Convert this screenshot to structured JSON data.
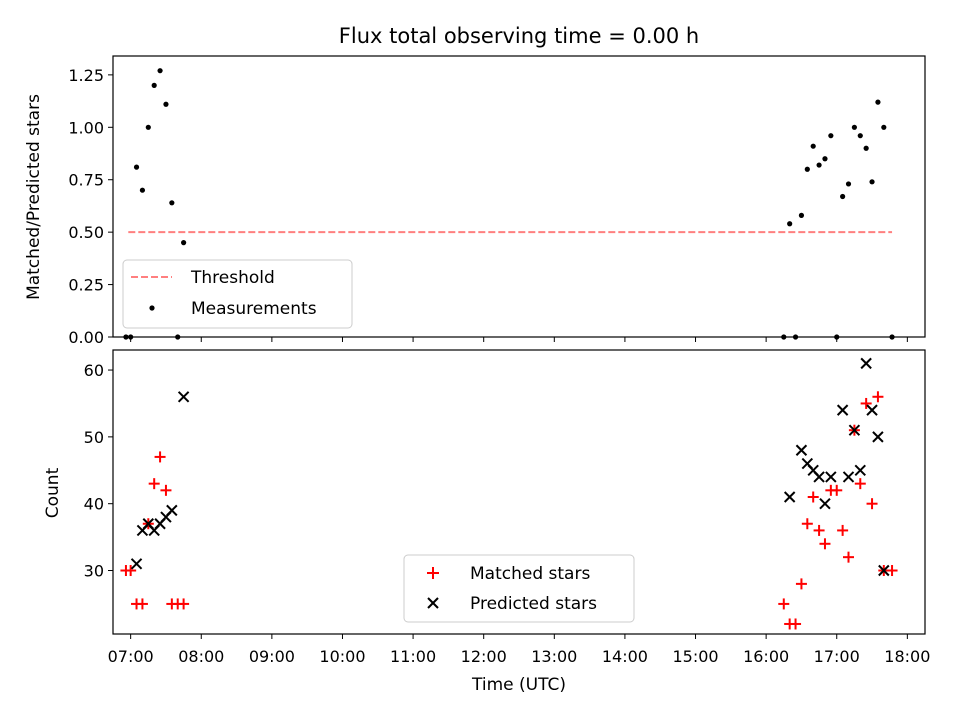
{
  "chart_data": [
    {
      "type": "scatter",
      "title": "Flux total observing time = 0.00 h",
      "ylabel": "Matched/Predicted stars",
      "xlabel": "",
      "xlim": [
        "06:45",
        "18:15"
      ],
      "ylim": [
        0.0,
        1.34
      ],
      "yticks": [
        "0.00",
        "0.25",
        "0.50",
        "0.75",
        "1.00",
        "1.25"
      ],
      "grid": false,
      "legend_position": "lower-left",
      "threshold": {
        "name": "Threshold",
        "color": "#ff7f7f",
        "style": "dashed",
        "y": 0.5,
        "x_range": [
          "06:58",
          "17:47"
        ]
      },
      "series": [
        {
          "name": "Measurements",
          "color": "#000000",
          "marker": "dot",
          "points": [
            [
              "06:56",
              0.0
            ],
            [
              "07:00",
              0.0
            ],
            [
              "07:05",
              0.81
            ],
            [
              "07:10",
              0.7
            ],
            [
              "07:15",
              1.0
            ],
            [
              "07:20",
              1.2
            ],
            [
              "07:25",
              1.27
            ],
            [
              "07:30",
              1.11
            ],
            [
              "07:35",
              0.64
            ],
            [
              "07:40",
              0.0
            ],
            [
              "07:45",
              0.45
            ],
            [
              "16:15",
              0.0
            ],
            [
              "16:20",
              0.54
            ],
            [
              "16:25",
              0.0
            ],
            [
              "16:30",
              0.58
            ],
            [
              "16:35",
              0.8
            ],
            [
              "16:40",
              0.91
            ],
            [
              "16:45",
              0.82
            ],
            [
              "16:50",
              0.85
            ],
            [
              "16:55",
              0.96
            ],
            [
              "17:00",
              0.0
            ],
            [
              "17:05",
              0.67
            ],
            [
              "17:10",
              0.73
            ],
            [
              "17:15",
              1.0
            ],
            [
              "17:20",
              0.96
            ],
            [
              "17:25",
              0.9
            ],
            [
              "17:30",
              0.74
            ],
            [
              "17:35",
              1.12
            ],
            [
              "17:40",
              1.0
            ],
            [
              "17:47",
              0.0
            ]
          ]
        }
      ]
    },
    {
      "type": "scatter",
      "title": "",
      "xlabel": "Time (UTC)",
      "ylabel": "Count",
      "xlim": [
        "06:45",
        "18:15"
      ],
      "ylim": [
        20.5,
        63.0
      ],
      "xticks": [
        "07:00",
        "08:00",
        "09:00",
        "10:00",
        "11:00",
        "12:00",
        "13:00",
        "14:00",
        "15:00",
        "16:00",
        "17:00",
        "18:00"
      ],
      "yticks": [
        "30",
        "40",
        "50",
        "60"
      ],
      "grid": false,
      "legend_position": "lower-center",
      "series": [
        {
          "name": "Matched stars",
          "color": "#ff0000",
          "marker": "plus",
          "points": [
            [
              "06:56",
              30
            ],
            [
              "07:00",
              30
            ],
            [
              "07:05",
              25
            ],
            [
              "07:10",
              25
            ],
            [
              "07:15",
              37
            ],
            [
              "07:20",
              43
            ],
            [
              "07:25",
              47
            ],
            [
              "07:30",
              42
            ],
            [
              "07:35",
              25
            ],
            [
              "07:40",
              25
            ],
            [
              "07:45",
              25
            ],
            [
              "16:15",
              25
            ],
            [
              "16:20",
              22
            ],
            [
              "16:25",
              22
            ],
            [
              "16:30",
              28
            ],
            [
              "16:35",
              37
            ],
            [
              "16:40",
              41
            ],
            [
              "16:45",
              36
            ],
            [
              "16:50",
              34
            ],
            [
              "16:55",
              42
            ],
            [
              "17:00",
              42
            ],
            [
              "17:05",
              36
            ],
            [
              "17:10",
              32
            ],
            [
              "17:15",
              51
            ],
            [
              "17:20",
              43
            ],
            [
              "17:25",
              55
            ],
            [
              "17:30",
              40
            ],
            [
              "17:35",
              56
            ],
            [
              "17:40",
              30
            ],
            [
              "17:47",
              30
            ]
          ]
        },
        {
          "name": "Predicted stars",
          "color": "#000000",
          "marker": "x",
          "points": [
            [
              "07:05",
              31
            ],
            [
              "07:10",
              36
            ],
            [
              "07:15",
              37
            ],
            [
              "07:20",
              36
            ],
            [
              "07:25",
              37
            ],
            [
              "07:30",
              38
            ],
            [
              "07:35",
              39
            ],
            [
              "07:45",
              56
            ],
            [
              "16:20",
              41
            ],
            [
              "16:30",
              48
            ],
            [
              "16:35",
              46
            ],
            [
              "16:40",
              45
            ],
            [
              "16:45",
              44
            ],
            [
              "16:50",
              40
            ],
            [
              "16:55",
              44
            ],
            [
              "17:05",
              54
            ],
            [
              "17:10",
              44
            ],
            [
              "17:15",
              51
            ],
            [
              "17:20",
              45
            ],
            [
              "17:25",
              61
            ],
            [
              "17:30",
              54
            ],
            [
              "17:35",
              50
            ],
            [
              "17:40",
              30
            ]
          ]
        }
      ]
    }
  ]
}
